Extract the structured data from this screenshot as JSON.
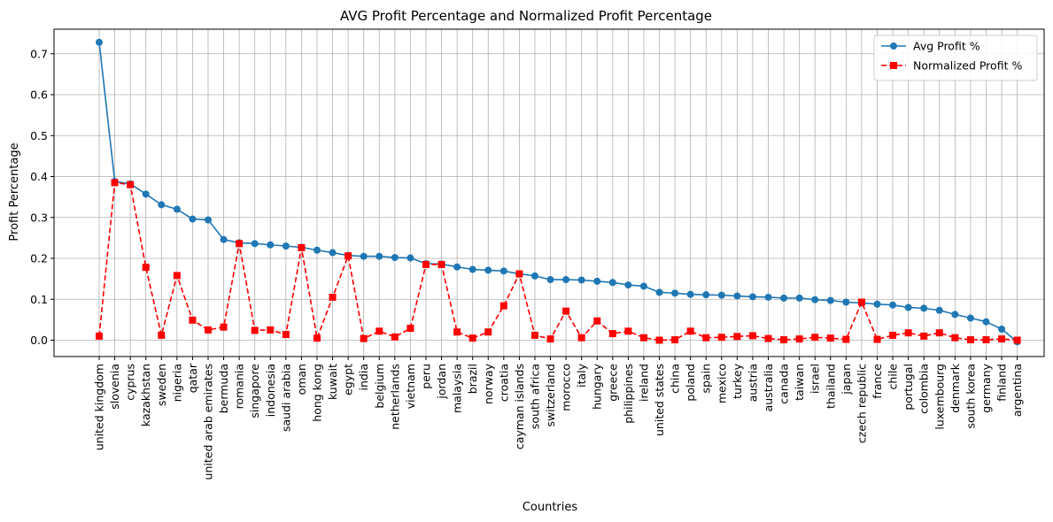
{
  "chart_data": {
    "type": "line",
    "title": "AVG Profit Percentage and Normalized Profit Percentage",
    "xlabel": "Countries",
    "ylabel": "Profit Percentage",
    "ylim": [
      -0.04,
      0.76
    ],
    "yticks": [
      0.0,
      0.1,
      0.2,
      0.3,
      0.4,
      0.5,
      0.6,
      0.7
    ],
    "ytick_labels": [
      "0.0",
      "0.1",
      "0.2",
      "0.3",
      "0.4",
      "0.5",
      "0.6",
      "0.7"
    ],
    "grid": true,
    "legend_position": "top-right",
    "categories": [
      "united kingdom",
      "slovenia",
      "cyprus",
      "kazakhstan",
      "sweden",
      "nigeria",
      "qatar",
      "united arab emirates",
      "bermuda",
      "romania",
      "singapore",
      "indonesia",
      "saudi arabia",
      "oman",
      "hong kong",
      "kuwait",
      "egypt",
      "india",
      "belgium",
      "netherlands",
      "vietnam",
      "peru",
      "jordan",
      "malaysia",
      "brazil",
      "norway",
      "croatia",
      "cayman islands",
      "south africa",
      "switzerland",
      "morocco",
      "italy",
      "hungary",
      "greece",
      "philippines",
      "ireland",
      "united states",
      "china",
      "poland",
      "spain",
      "mexico",
      "turkey",
      "austria",
      "australia",
      "canada",
      "taiwan",
      "israel",
      "thailand",
      "japan",
      "czech republic",
      "france",
      "chile",
      "portugal",
      "colombia",
      "luxembourg",
      "denmark",
      "south korea",
      "germany",
      "finland",
      "argentina"
    ],
    "series": [
      {
        "name": "Avg Profit %",
        "color": "#1f77b4",
        "marker": "circle",
        "linestyle": "solid",
        "values": [
          0.728,
          0.388,
          0.382,
          0.357,
          0.331,
          0.32,
          0.296,
          0.294,
          0.246,
          0.238,
          0.236,
          0.233,
          0.23,
          0.227,
          0.22,
          0.214,
          0.207,
          0.205,
          0.205,
          0.202,
          0.201,
          0.187,
          0.186,
          0.179,
          0.173,
          0.171,
          0.169,
          0.162,
          0.157,
          0.148,
          0.148,
          0.147,
          0.144,
          0.141,
          0.135,
          0.132,
          0.117,
          0.115,
          0.112,
          0.111,
          0.11,
          0.108,
          0.106,
          0.105,
          0.103,
          0.103,
          0.099,
          0.097,
          0.093,
          0.091,
          0.088,
          0.086,
          0.08,
          0.078,
          0.073,
          0.063,
          0.054,
          0.045,
          0.027,
          -0.004
        ]
      },
      {
        "name": "Normalized Profit %",
        "color": "#ff0000",
        "marker": "square",
        "linestyle": "dashed",
        "values": [
          0.01,
          0.385,
          0.38,
          0.178,
          0.012,
          0.158,
          0.049,
          0.025,
          0.032,
          0.236,
          0.024,
          0.025,
          0.014,
          0.226,
          0.005,
          0.105,
          0.206,
          0.004,
          0.022,
          0.008,
          0.029,
          0.185,
          0.185,
          0.02,
          0.005,
          0.02,
          0.084,
          0.162,
          0.012,
          0.003,
          0.071,
          0.006,
          0.047,
          0.016,
          0.022,
          0.006,
          0.0,
          0.001,
          0.022,
          0.006,
          0.007,
          0.009,
          0.011,
          0.004,
          0.001,
          0.003,
          0.007,
          0.005,
          0.002,
          0.093,
          0.002,
          0.012,
          0.018,
          0.01,
          0.018,
          0.006,
          0.001,
          0.001,
          0.003,
          0.0
        ]
      }
    ]
  }
}
